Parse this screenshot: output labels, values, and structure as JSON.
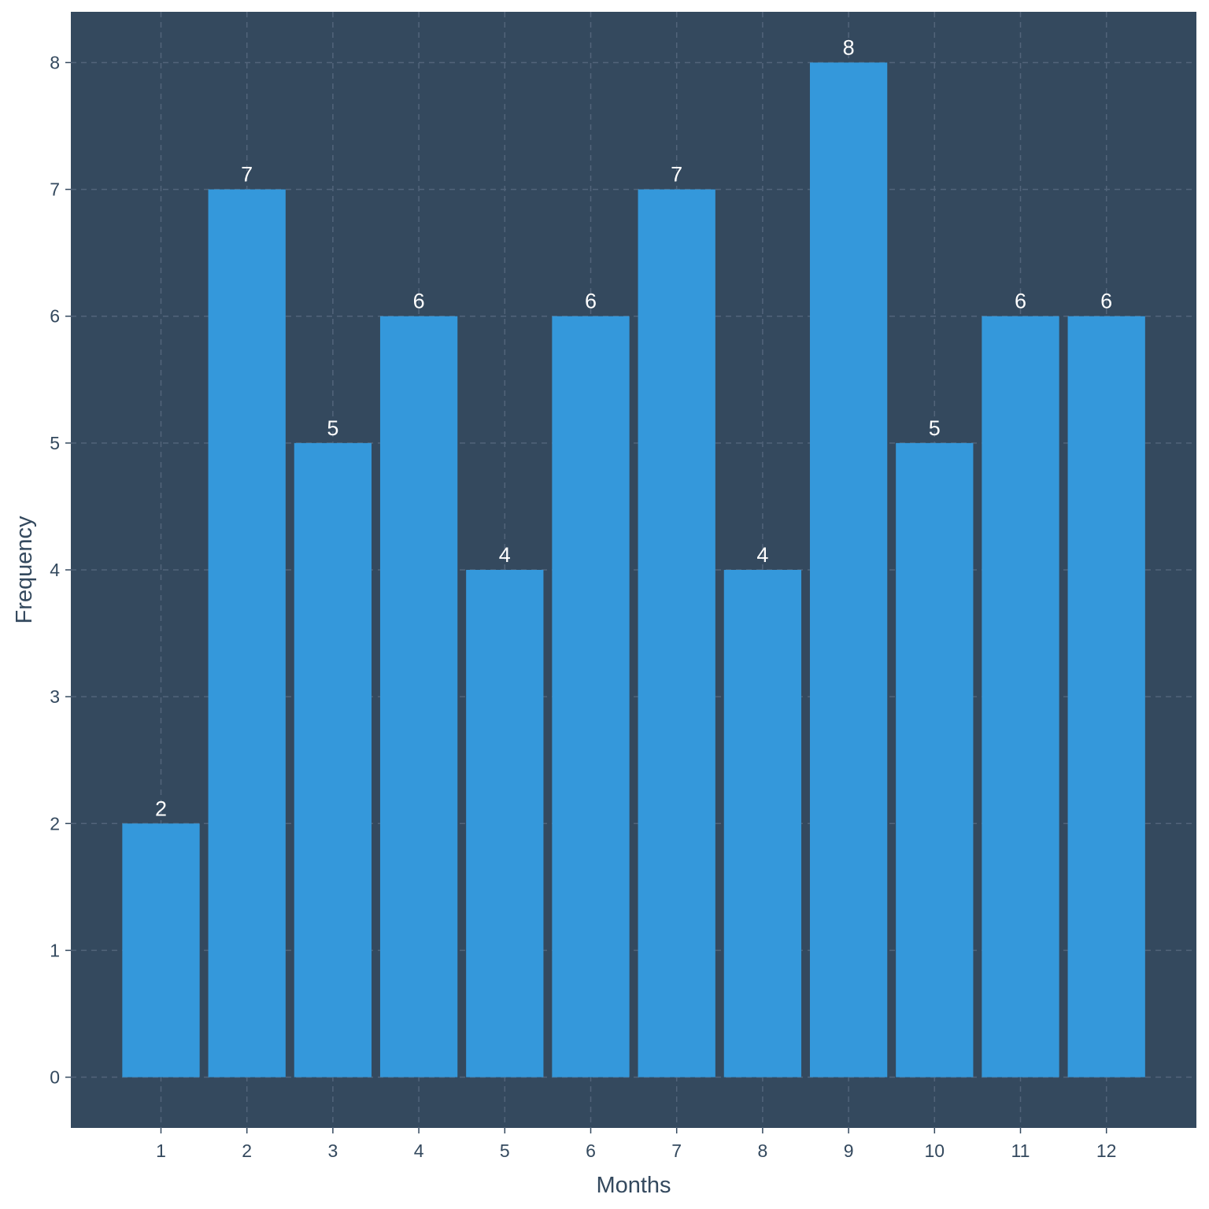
{
  "chart_data": {
    "type": "bar",
    "categories": [
      "1",
      "2",
      "3",
      "4",
      "5",
      "6",
      "7",
      "8",
      "9",
      "10",
      "11",
      "12"
    ],
    "values": [
      2,
      7,
      5,
      6,
      4,
      6,
      7,
      4,
      8,
      5,
      6,
      6
    ],
    "data_labels": [
      "2",
      "7",
      "5",
      "6",
      "4",
      "6",
      "7",
      "4",
      "8",
      "5",
      "6",
      "6"
    ],
    "y_ticks": [
      "0",
      "1",
      "2",
      "3",
      "4",
      "5",
      "6",
      "7",
      "8"
    ],
    "title": "",
    "xlabel": "Months",
    "ylabel": "Frequency",
    "ylim": [
      -0.4,
      8.4
    ],
    "grid": true,
    "legend": "none",
    "colors": {
      "panel_background": "#34495e",
      "bar_fill": "#3498db",
      "grid": "#52647a",
      "data_label": "#ffffff",
      "axis_text": "#34495e"
    }
  }
}
